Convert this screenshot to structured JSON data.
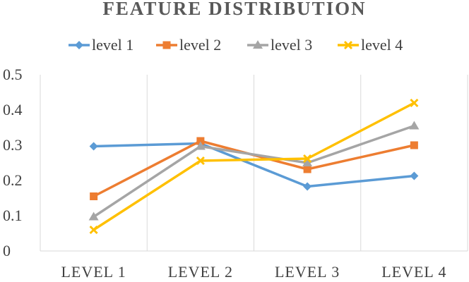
{
  "chart_data": {
    "type": "line",
    "title": "FEATURE DISTRIBUTION",
    "categories": [
      "LEVEL 1",
      "LEVEL 2",
      "LEVEL 3",
      "LEVEL 4"
    ],
    "ylim": [
      0,
      0.5
    ],
    "yticks": [
      "0",
      "0.1",
      "0.2",
      "0.3",
      "0.4",
      "0.5"
    ],
    "grid": "vertical",
    "legend_position": "top",
    "series": [
      {
        "name": "level 1",
        "color": "#5B9BD5",
        "marker": "diamond",
        "values": [
          0.297,
          0.305,
          0.183,
          0.213
        ]
      },
      {
        "name": "level 2",
        "color": "#ED7D31",
        "marker": "square",
        "values": [
          0.155,
          0.312,
          0.232,
          0.3
        ]
      },
      {
        "name": "level 3",
        "color": "#A5A5A5",
        "marker": "triangle",
        "values": [
          0.097,
          0.297,
          0.25,
          0.355
        ]
      },
      {
        "name": "level 4",
        "color": "#FFC000",
        "marker": "x",
        "values": [
          0.06,
          0.256,
          0.262,
          0.42
        ]
      }
    ]
  }
}
